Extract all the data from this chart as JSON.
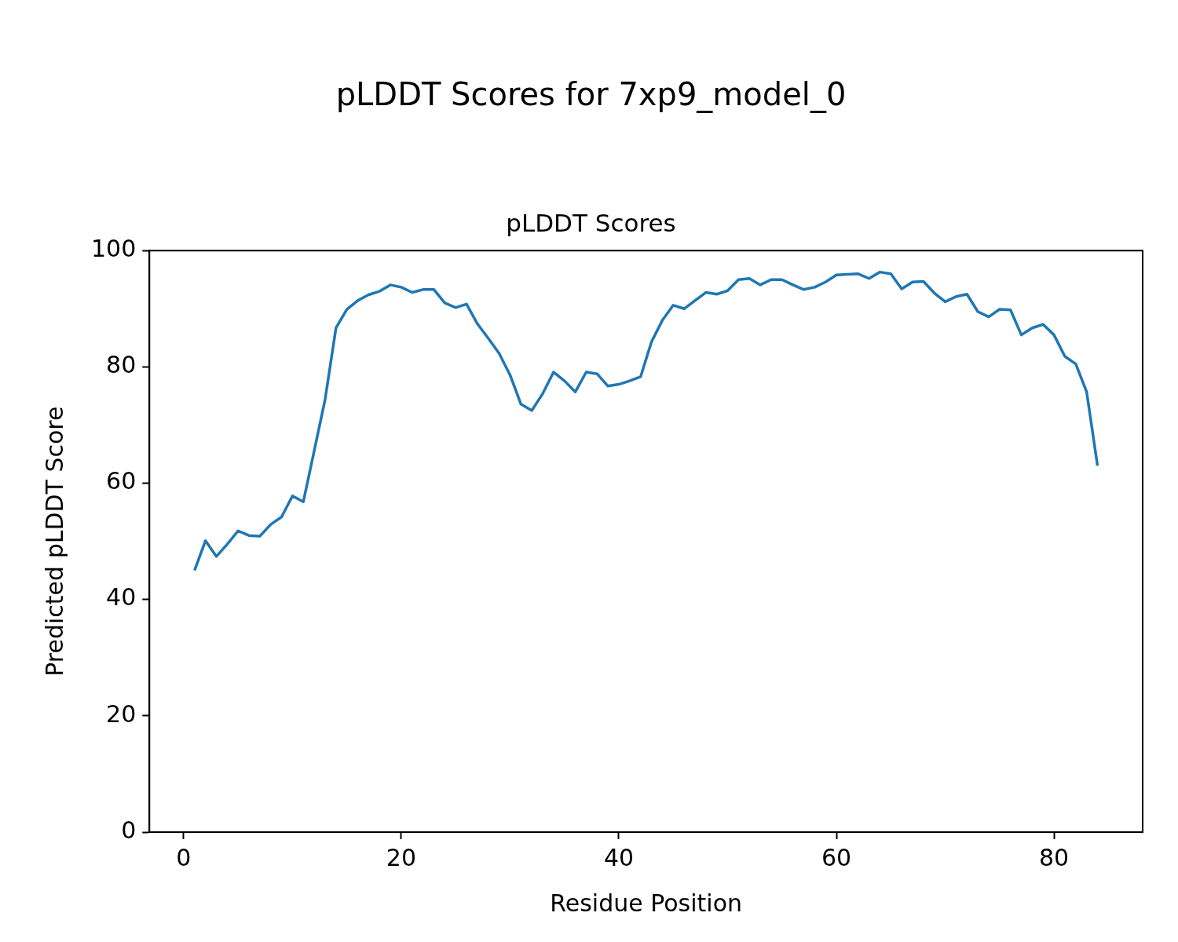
{
  "chart_data": {
    "type": "line",
    "title": "pLDDT Scores for 7xp9_model_0",
    "subtitle": "pLDDT Scores",
    "xlabel": "Residue Position",
    "ylabel": "Predicted pLDDT Score",
    "x": [
      1,
      2,
      3,
      4,
      5,
      6,
      7,
      8,
      9,
      10,
      11,
      12,
      13,
      14,
      15,
      16,
      17,
      18,
      19,
      20,
      21,
      22,
      23,
      24,
      25,
      26,
      27,
      28,
      29,
      30,
      31,
      32,
      33,
      34,
      35,
      36,
      37,
      38,
      39,
      40,
      41,
      42,
      43,
      44,
      45,
      46,
      47,
      48,
      49,
      50,
      51,
      52,
      53,
      54,
      55,
      56,
      57,
      58,
      59,
      60,
      61,
      62,
      63,
      64,
      65,
      66,
      67,
      68,
      69,
      70,
      71,
      72,
      73,
      74,
      75,
      76,
      77,
      78,
      79,
      80,
      81,
      82,
      83,
      84
    ],
    "series": [
      {
        "color": "#1f77b4",
        "values": [
          45.0,
          50.1,
          47.4,
          49.5,
          51.8,
          51.0,
          50.9,
          52.9,
          54.2,
          57.8,
          56.8,
          65.6,
          74.4,
          86.7,
          89.9,
          91.4,
          92.4,
          93.0,
          94.1,
          93.7,
          92.8,
          93.3,
          93.3,
          91.0,
          90.2,
          90.8,
          87.4,
          84.9,
          82.3,
          78.6,
          73.6,
          72.5,
          75.4,
          79.1,
          77.6,
          75.7,
          79.1,
          78.8,
          76.7,
          77.0,
          77.6,
          78.3,
          84.3,
          88.0,
          90.6,
          90.0,
          91.4,
          92.8,
          92.5,
          93.1,
          95.0,
          95.2,
          94.1,
          95.0,
          95.0,
          94.1,
          93.3,
          93.7,
          94.6,
          95.8,
          95.9,
          96.0,
          95.2,
          96.3,
          96.0,
          93.4,
          94.6,
          94.7,
          92.7,
          91.2,
          92.1,
          92.5,
          89.5,
          88.6,
          89.9,
          89.8,
          85.5,
          86.7,
          87.3,
          85.5,
          81.8,
          80.5,
          75.7,
          63.0
        ]
      }
    ],
    "xlim": [
      -3.15,
      88.15
    ],
    "ylim": [
      0,
      100
    ],
    "xticks": [
      0,
      20,
      40,
      60,
      80
    ],
    "yticks": [
      0,
      20,
      40,
      60,
      80,
      100
    ],
    "grid": false,
    "legend": false,
    "marker": "none",
    "line_style": "solid"
  }
}
